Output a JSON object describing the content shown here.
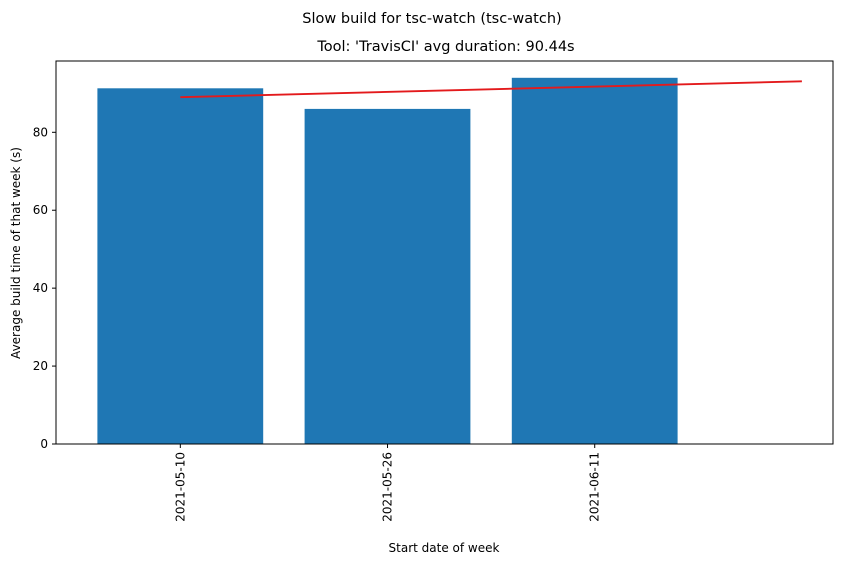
{
  "chart_data": {
    "type": "bar",
    "suptitle": "Slow build for tsc-watch (tsc-watch)",
    "title": "Tool: 'TravisCI' avg duration: 90.44s",
    "xlabel": "Start date of week",
    "ylabel": "Average build time of that week (s)",
    "categories": [
      "2021-05-10",
      "2021-05-26",
      "2021-06-11"
    ],
    "values": [
      91.3,
      86.0,
      94.0
    ],
    "bar_color": "#1f77b4",
    "trend_line": {
      "color": "#e31a1c",
      "start": {
        "x": 0,
        "y": 89.0
      },
      "end": {
        "x": 3,
        "y": 93.1
      }
    },
    "xlim": [
      -0.6,
      3.15
    ],
    "ylim": [
      0,
      98.3
    ],
    "yticks": [
      0,
      20,
      40,
      60,
      80
    ],
    "grid": false,
    "legend": "none"
  }
}
